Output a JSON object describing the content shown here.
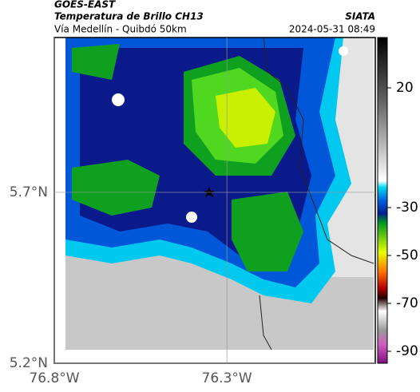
{
  "header": {
    "source": "GOES-EAST",
    "product": "Temperatura de Brillo CH13",
    "agency": "SIATA",
    "region": "Vía Medellín - Quibdó 50km",
    "timestamp": "2024-05-31 08:49"
  },
  "map": {
    "xlim": [
      -76.8,
      -75.87
    ],
    "ylim": [
      5.2,
      6.153
    ],
    "xticks": [
      {
        "value": -76.8,
        "label": "76.8°W"
      },
      {
        "value": -76.3,
        "label": "76.3°W"
      }
    ],
    "yticks": [
      {
        "value": 5.7,
        "label": "5.7°N"
      },
      {
        "value": 5.2,
        "label": "5.2°N"
      }
    ]
  },
  "colorbar": {
    "lim": [
      -95,
      41
    ],
    "ticks": [
      20,
      -30,
      -50,
      -70,
      -90
    ]
  }
}
